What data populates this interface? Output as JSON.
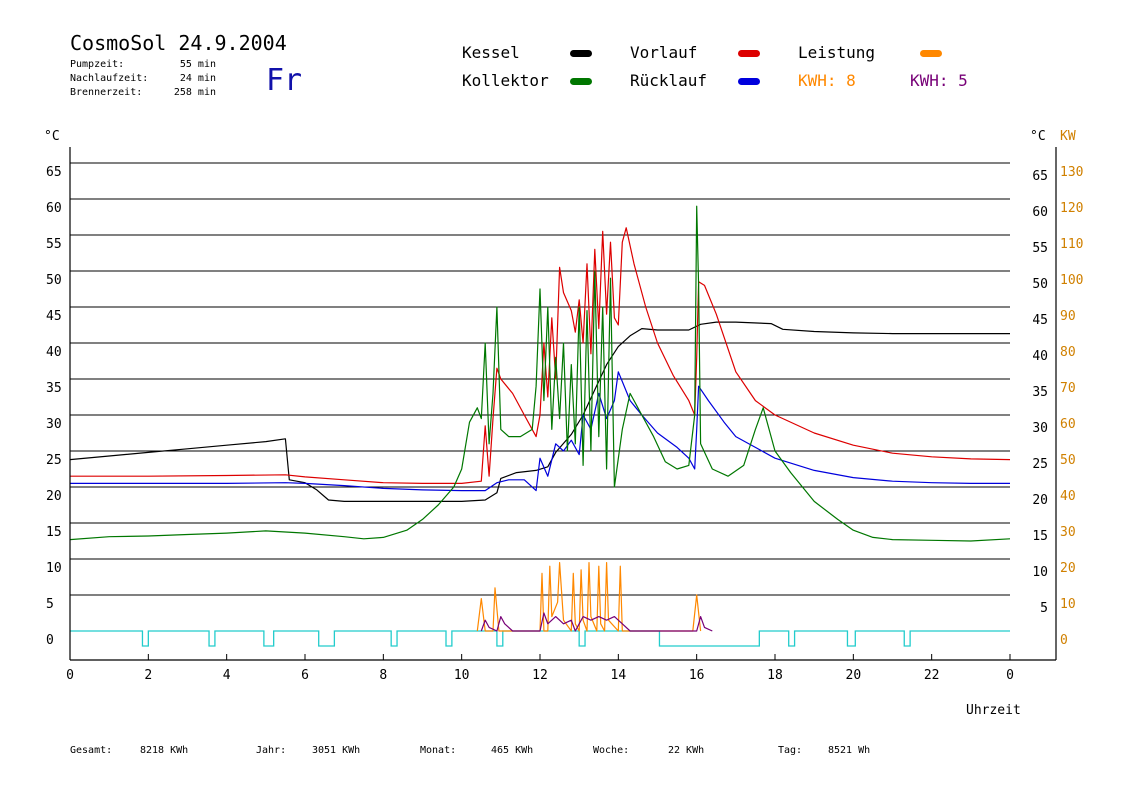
{
  "header": {
    "title": "CosmoSol 24.9.2004",
    "weekday": "Fr",
    "stats": [
      {
        "label": "Pumpzeit:",
        "value": "55 min"
      },
      {
        "label": "Nachlaufzeit:",
        "value": "24 min"
      },
      {
        "label": "Brennerzeit:",
        "value": "258 min"
      }
    ]
  },
  "legend": [
    {
      "label": "Kessel",
      "color": "#000000"
    },
    {
      "label": "Vorlauf",
      "color": "#dd0000"
    },
    {
      "label": "Leistung",
      "color": "#ff8800"
    },
    {
      "label": "Kollektor",
      "color": "#007700"
    },
    {
      "label": "Rücklauf",
      "color": "#0000dd"
    }
  ],
  "kwh": [
    {
      "label": "KWH:",
      "value": "8",
      "color": "#ff8800"
    },
    {
      "label": "KWH:",
      "value": "5",
      "color": "#770077"
    }
  ],
  "footer": [
    {
      "label": "Gesamt:",
      "value": "8218 KWh"
    },
    {
      "label": "Jahr:",
      "value": "3051 KWh"
    },
    {
      "label": "Monat:",
      "value": "465 KWh"
    },
    {
      "label": "Woche:",
      "value": "22 KWh"
    },
    {
      "label": "Tag:",
      "value": "8521 Wh"
    }
  ],
  "chart_data": {
    "type": "line",
    "left_unit": "°C",
    "right_unit_temp": "°C",
    "right_unit_power": "KW",
    "xlabel": "Uhrzeit",
    "x_ticks": [
      "0",
      "2",
      "4",
      "6",
      "8",
      "10",
      "12",
      "14",
      "16",
      "18",
      "20",
      "22",
      "0"
    ],
    "xlim": [
      0,
      24
    ],
    "ylim": [
      0,
      70
    ],
    "y_ticks_left": [
      0,
      5,
      10,
      15,
      20,
      25,
      30,
      35,
      40,
      45,
      50,
      55,
      60,
      65
    ],
    "y_ticks_right_temp": [
      5,
      10,
      15,
      20,
      25,
      30,
      35,
      40,
      45,
      50,
      55,
      60,
      65
    ],
    "y_ticks_right_power": [
      0,
      10,
      20,
      30,
      40,
      50,
      60,
      70,
      80,
      90,
      100,
      110,
      120,
      130
    ],
    "power_ylim": [
      0,
      140
    ],
    "grid": true,
    "series": [
      {
        "name": "Kessel",
        "color": "#000000",
        "points": [
          [
            0,
            23.8
          ],
          [
            1,
            24.3
          ],
          [
            2,
            24.8
          ],
          [
            3,
            25.3
          ],
          [
            4,
            25.8
          ],
          [
            5,
            26.3
          ],
          [
            5.5,
            26.7
          ],
          [
            5.6,
            21.0
          ],
          [
            6,
            20.6
          ],
          [
            6.3,
            19.6
          ],
          [
            6.6,
            18.2
          ],
          [
            7,
            18.0
          ],
          [
            8,
            18.0
          ],
          [
            9,
            18.0
          ],
          [
            10,
            18.0
          ],
          [
            10.6,
            18.2
          ],
          [
            10.9,
            19.2
          ],
          [
            11,
            21.2
          ],
          [
            11.4,
            22.0
          ],
          [
            11.9,
            22.3
          ],
          [
            12.2,
            22.8
          ],
          [
            12.4,
            24.8
          ],
          [
            12.8,
            27.3
          ],
          [
            13.1,
            30.0
          ],
          [
            13.4,
            33.5
          ],
          [
            13.7,
            37.0
          ],
          [
            14.0,
            39.5
          ],
          [
            14.3,
            41.0
          ],
          [
            14.6,
            42.0
          ],
          [
            15.0,
            41.8
          ],
          [
            15.8,
            41.8
          ],
          [
            16.1,
            42.6
          ],
          [
            16.5,
            42.9
          ],
          [
            17.0,
            42.9
          ],
          [
            17.9,
            42.7
          ],
          [
            18.2,
            41.9
          ],
          [
            19,
            41.6
          ],
          [
            20,
            41.4
          ],
          [
            21,
            41.3
          ],
          [
            22,
            41.3
          ],
          [
            23,
            41.3
          ],
          [
            24,
            41.3
          ]
        ]
      },
      {
        "name": "Vorlauf",
        "color": "#dd0000",
        "points": [
          [
            0,
            21.5
          ],
          [
            2,
            21.5
          ],
          [
            4,
            21.6
          ],
          [
            5.5,
            21.7
          ],
          [
            6,
            21.4
          ],
          [
            7,
            21.0
          ],
          [
            8,
            20.6
          ],
          [
            9,
            20.5
          ],
          [
            10,
            20.5
          ],
          [
            10.5,
            20.8
          ],
          [
            10.6,
            28.5
          ],
          [
            10.7,
            21.5
          ],
          [
            10.8,
            29.5
          ],
          [
            10.9,
            36.5
          ],
          [
            11,
            35.0
          ],
          [
            11.3,
            33.0
          ],
          [
            11.6,
            30.0
          ],
          [
            11.9,
            27.0
          ],
          [
            12.0,
            30.0
          ],
          [
            12.1,
            40.0
          ],
          [
            12.2,
            32.5
          ],
          [
            12.3,
            43.5
          ],
          [
            12.4,
            35.0
          ],
          [
            12.5,
            50.5
          ],
          [
            12.6,
            47.0
          ],
          [
            12.8,
            44.5
          ],
          [
            12.9,
            41.5
          ],
          [
            13.0,
            46.0
          ],
          [
            13.1,
            40.0
          ],
          [
            13.2,
            51.0
          ],
          [
            13.3,
            38.5
          ],
          [
            13.4,
            53.0
          ],
          [
            13.5,
            42.0
          ],
          [
            13.6,
            55.5
          ],
          [
            13.7,
            44.0
          ],
          [
            13.8,
            54.0
          ],
          [
            13.9,
            43.5
          ],
          [
            14.0,
            42.5
          ],
          [
            14.1,
            54.0
          ],
          [
            14.2,
            56.0
          ],
          [
            14.4,
            51.0
          ],
          [
            14.7,
            45.0
          ],
          [
            15.0,
            40.0
          ],
          [
            15.4,
            35.5
          ],
          [
            15.8,
            32.0
          ],
          [
            15.95,
            30.0
          ],
          [
            16.0,
            38.0
          ],
          [
            16.05,
            48.5
          ],
          [
            16.2,
            48.0
          ],
          [
            16.5,
            44.0
          ],
          [
            17,
            36.0
          ],
          [
            17.5,
            32.0
          ],
          [
            18,
            30.0
          ],
          [
            19,
            27.5
          ],
          [
            20,
            25.8
          ],
          [
            21,
            24.7
          ],
          [
            22,
            24.2
          ],
          [
            23,
            23.9
          ],
          [
            24,
            23.8
          ]
        ]
      },
      {
        "name": "Rücklauf",
        "color": "#0000dd",
        "points": [
          [
            0,
            20.5
          ],
          [
            2,
            20.5
          ],
          [
            4,
            20.5
          ],
          [
            5.5,
            20.6
          ],
          [
            6,
            20.5
          ],
          [
            7,
            20.2
          ],
          [
            8,
            19.8
          ],
          [
            9,
            19.6
          ],
          [
            10,
            19.5
          ],
          [
            10.6,
            19.5
          ],
          [
            10.9,
            20.6
          ],
          [
            11.2,
            21.0
          ],
          [
            11.6,
            21.0
          ],
          [
            11.9,
            19.5
          ],
          [
            12.0,
            24.0
          ],
          [
            12.2,
            21.5
          ],
          [
            12.4,
            26.0
          ],
          [
            12.6,
            25.0
          ],
          [
            12.8,
            26.5
          ],
          [
            13.0,
            24.5
          ],
          [
            13.1,
            30.0
          ],
          [
            13.3,
            28.0
          ],
          [
            13.5,
            33.0
          ],
          [
            13.7,
            29.5
          ],
          [
            13.9,
            32.0
          ],
          [
            14.0,
            36.0
          ],
          [
            14.3,
            32.0
          ],
          [
            14.6,
            30.0
          ],
          [
            15,
            27.5
          ],
          [
            15.5,
            25.5
          ],
          [
            15.8,
            24.0
          ],
          [
            15.95,
            22.5
          ],
          [
            16.0,
            28.0
          ],
          [
            16.05,
            34.0
          ],
          [
            16.3,
            32.0
          ],
          [
            16.7,
            29.0
          ],
          [
            17,
            27.0
          ],
          [
            17.5,
            25.5
          ],
          [
            18,
            24.0
          ],
          [
            19,
            22.3
          ],
          [
            20,
            21.3
          ],
          [
            21,
            20.8
          ],
          [
            22,
            20.6
          ],
          [
            23,
            20.5
          ],
          [
            24,
            20.5
          ]
        ]
      },
      {
        "name": "Kollektor",
        "color": "#007700",
        "points": [
          [
            0,
            12.7
          ],
          [
            1,
            13.1
          ],
          [
            2,
            13.2
          ],
          [
            3,
            13.4
          ],
          [
            4,
            13.6
          ],
          [
            5,
            13.9
          ],
          [
            6,
            13.6
          ],
          [
            7,
            13.1
          ],
          [
            7.5,
            12.8
          ],
          [
            8,
            13.0
          ],
          [
            8.6,
            14.0
          ],
          [
            9,
            15.5
          ],
          [
            9.4,
            17.5
          ],
          [
            9.8,
            20.0
          ],
          [
            10.0,
            22.5
          ],
          [
            10.2,
            29.0
          ],
          [
            10.4,
            31.0
          ],
          [
            10.5,
            29.5
          ],
          [
            10.6,
            40.0
          ],
          [
            10.7,
            26.0
          ],
          [
            10.8,
            33.0
          ],
          [
            10.9,
            45.0
          ],
          [
            11.0,
            28.0
          ],
          [
            11.2,
            27.0
          ],
          [
            11.5,
            27.0
          ],
          [
            11.8,
            28.0
          ],
          [
            11.9,
            34.0
          ],
          [
            12.0,
            47.5
          ],
          [
            12.1,
            32.0
          ],
          [
            12.2,
            45.0
          ],
          [
            12.3,
            28.0
          ],
          [
            12.4,
            38.0
          ],
          [
            12.5,
            29.5
          ],
          [
            12.6,
            40.0
          ],
          [
            12.7,
            25.0
          ],
          [
            12.8,
            37.0
          ],
          [
            12.9,
            26.0
          ],
          [
            13.0,
            45.0
          ],
          [
            13.1,
            23.0
          ],
          [
            13.2,
            44.5
          ],
          [
            13.3,
            25.0
          ],
          [
            13.4,
            50.0
          ],
          [
            13.5,
            27.0
          ],
          [
            13.6,
            45.0
          ],
          [
            13.7,
            22.5
          ],
          [
            13.8,
            49.0
          ],
          [
            13.9,
            20.0
          ],
          [
            14.1,
            28.0
          ],
          [
            14.3,
            33.0
          ],
          [
            14.6,
            30.0
          ],
          [
            14.9,
            27.0
          ],
          [
            15.2,
            23.5
          ],
          [
            15.5,
            22.5
          ],
          [
            15.8,
            23.0
          ],
          [
            15.95,
            30.0
          ],
          [
            16.0,
            59.0
          ],
          [
            16.05,
            48.0
          ],
          [
            16.1,
            26.0
          ],
          [
            16.4,
            22.5
          ],
          [
            16.8,
            21.5
          ],
          [
            17.2,
            23.0
          ],
          [
            17.5,
            28.0
          ],
          [
            17.7,
            31.0
          ],
          [
            18.0,
            25.0
          ],
          [
            18.4,
            22.0
          ],
          [
            19,
            18.0
          ],
          [
            19.6,
            15.5
          ],
          [
            20,
            14.0
          ],
          [
            20.5,
            13.0
          ],
          [
            21,
            12.7
          ],
          [
            22,
            12.6
          ],
          [
            23,
            12.5
          ],
          [
            24,
            12.8
          ]
        ]
      },
      {
        "name": "Leistung",
        "color": "#ff8800",
        "axis": "power",
        "points": [
          [
            10.4,
            0
          ],
          [
            10.5,
            9
          ],
          [
            10.6,
            0
          ],
          [
            10.8,
            0
          ],
          [
            10.85,
            12
          ],
          [
            10.95,
            0
          ],
          [
            12.0,
            0
          ],
          [
            12.05,
            16
          ],
          [
            12.1,
            0
          ],
          [
            12.2,
            0
          ],
          [
            12.25,
            18
          ],
          [
            12.3,
            4
          ],
          [
            12.45,
            8
          ],
          [
            12.5,
            19
          ],
          [
            12.6,
            3
          ],
          [
            12.8,
            0
          ],
          [
            12.85,
            16
          ],
          [
            12.9,
            2
          ],
          [
            13.0,
            0
          ],
          [
            13.05,
            17
          ],
          [
            13.1,
            3
          ],
          [
            13.2,
            0
          ],
          [
            13.25,
            19
          ],
          [
            13.3,
            4
          ],
          [
            13.45,
            0
          ],
          [
            13.5,
            18
          ],
          [
            13.55,
            2
          ],
          [
            13.65,
            0
          ],
          [
            13.7,
            19
          ],
          [
            13.75,
            3
          ],
          [
            14.0,
            0
          ],
          [
            14.05,
            18
          ],
          [
            14.1,
            0
          ],
          [
            15.9,
            0
          ],
          [
            16.0,
            10
          ],
          [
            16.1,
            0
          ]
        ]
      },
      {
        "name": "KWH",
        "color": "#770077",
        "axis": "power",
        "points": [
          [
            10.5,
            0
          ],
          [
            10.6,
            3
          ],
          [
            10.7,
            1
          ],
          [
            10.9,
            0
          ],
          [
            11.0,
            4
          ],
          [
            11.1,
            2
          ],
          [
            11.3,
            0
          ],
          [
            12.0,
            0
          ],
          [
            12.1,
            5
          ],
          [
            12.2,
            2
          ],
          [
            12.4,
            4
          ],
          [
            12.6,
            2
          ],
          [
            12.8,
            3
          ],
          [
            12.9,
            0
          ],
          [
            13.0,
            2
          ],
          [
            13.1,
            4
          ],
          [
            13.3,
            3
          ],
          [
            13.5,
            4
          ],
          [
            13.7,
            3
          ],
          [
            13.9,
            4
          ],
          [
            14.1,
            2
          ],
          [
            14.3,
            0
          ],
          [
            16.0,
            0
          ],
          [
            16.1,
            4
          ],
          [
            16.2,
            1
          ],
          [
            16.4,
            0
          ]
        ]
      }
    ],
    "pump_pulses": [
      [
        1.85,
        2.0
      ],
      [
        3.55,
        3.7
      ],
      [
        4.95,
        5.2
      ],
      [
        6.35,
        6.75
      ],
      [
        8.2,
        8.35
      ],
      [
        9.6,
        9.75
      ],
      [
        10.9,
        11.05
      ],
      [
        13.0,
        13.15
      ],
      [
        15.05,
        17.6
      ],
      [
        18.35,
        18.5
      ],
      [
        19.85,
        20.05
      ],
      [
        21.3,
        21.45
      ]
    ]
  }
}
